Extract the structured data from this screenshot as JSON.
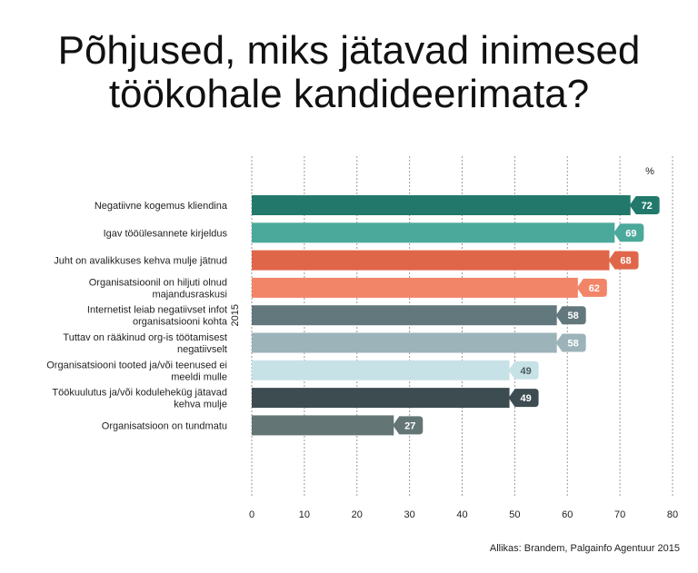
{
  "title_line1": "Põhjused, miks jätavad inimesed",
  "title_line2": "töökohale kandideerimata?",
  "source": "Allikas: Brandem, Palgainfo Agentuur 2015",
  "chart_data": {
    "type": "bar",
    "orientation": "horizontal",
    "unit_label": "%",
    "series_label": "2015",
    "xlim": [
      0,
      80
    ],
    "xticks": [
      0,
      10,
      20,
      30,
      40,
      50,
      60,
      70,
      80
    ],
    "categories": [
      [
        "Negatiivne kogemus kliendina"
      ],
      [
        "Igav tööülesannete kirjeldus"
      ],
      [
        "Juht on avalikkuses kehva mulje jätnud"
      ],
      [
        "Organisatsioonil on hiljuti olnud",
        "majandusraskusi"
      ],
      [
        "Internetist leiab negatiivset infot",
        "organisatsiooni kohta"
      ],
      [
        "Tuttav on rääkinud org-is töötamisest",
        "negatiivselt"
      ],
      [
        "Organisatsiooni tooted ja/või teenused ei",
        "meeldi mulle"
      ],
      [
        "Töökuulutus ja/või koduleheküg jätavad",
        "kehva mulje"
      ],
      [
        "Organisatsioon on tundmatu"
      ]
    ],
    "values": [
      72,
      69,
      68,
      62,
      58,
      58,
      49,
      49,
      27
    ],
    "colors": [
      "#22796b",
      "#4ba99b",
      "#e0664a",
      "#f28468",
      "#63787d",
      "#9cb3b9",
      "#c7e2e6",
      "#3d4c50",
      "#647575"
    ],
    "label_colors": [
      "#ffffff",
      "#ffffff",
      "#ffffff",
      "#ffffff",
      "#ffffff",
      "#ffffff",
      "#4b5b5f",
      "#ffffff",
      "#ffffff"
    ]
  }
}
